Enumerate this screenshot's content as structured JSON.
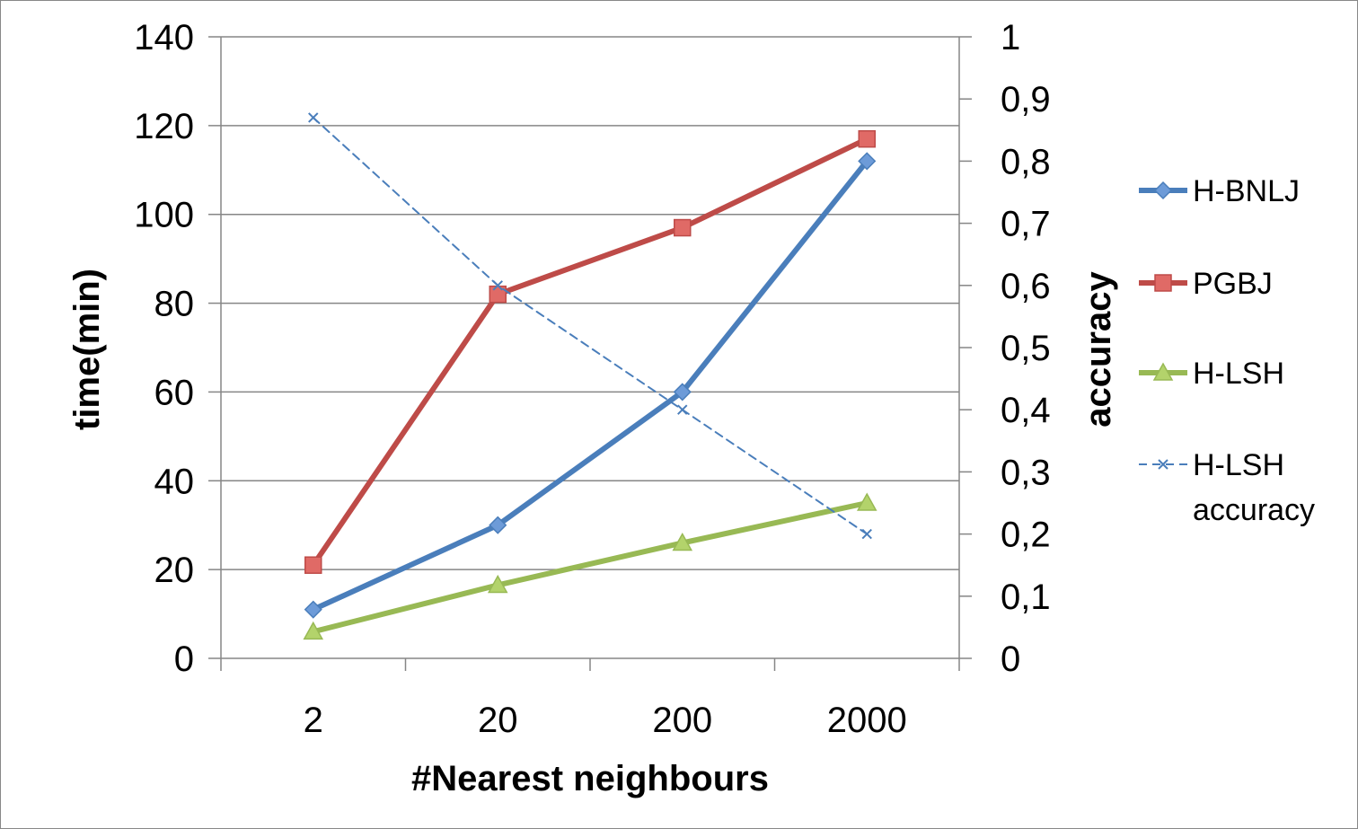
{
  "chart_data": {
    "type": "line",
    "title": "",
    "xlabel": "#Nearest neighbours",
    "ylabel": "time(min)",
    "y2label": "accuracy",
    "categories": [
      "2",
      "20",
      "200",
      "2000"
    ],
    "ylim": [
      0,
      140
    ],
    "y_ticks": [
      "0",
      "20",
      "40",
      "60",
      "80",
      "100",
      "120",
      "140"
    ],
    "y2lim": [
      0,
      1
    ],
    "y2_ticks": [
      "0",
      "0,1",
      "0,2",
      "0,3",
      "0,4",
      "0,5",
      "0,6",
      "0,7",
      "0,8",
      "0,9",
      "1"
    ],
    "grid": true,
    "legend_position": "right",
    "series": [
      {
        "name": "H-BNLJ",
        "axis": "left",
        "color": "#4a7ebb",
        "marker": "diamond",
        "dashed": false,
        "values": [
          11,
          30,
          60,
          112
        ]
      },
      {
        "name": "PGBJ",
        "axis": "left",
        "color": "#be4b48",
        "marker": "square",
        "dashed": false,
        "values": [
          21,
          82,
          97,
          117
        ]
      },
      {
        "name": "H-LSH",
        "axis": "left",
        "color": "#98b954",
        "marker": "triangle",
        "dashed": false,
        "values": [
          6,
          16.5,
          26,
          35
        ]
      },
      {
        "name": "H-LSH accuracy",
        "legend_lines": [
          "H-LSH",
          "accuracy"
        ],
        "axis": "right",
        "color": "#4a7ebb",
        "marker": "x",
        "dashed": true,
        "values": [
          0.87,
          0.6,
          0.4,
          0.2
        ]
      }
    ]
  }
}
